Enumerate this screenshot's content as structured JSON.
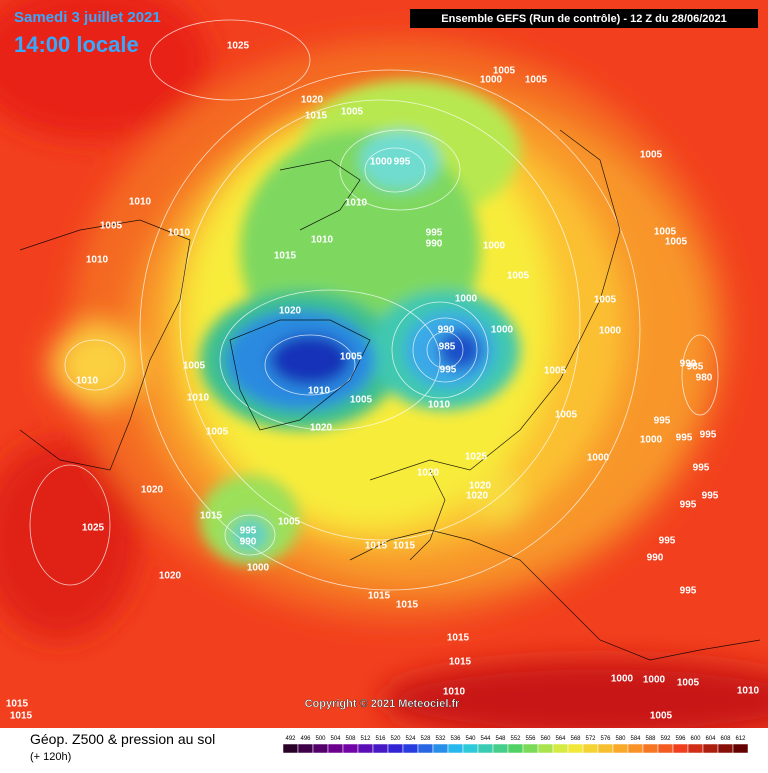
{
  "header": {
    "date": "Samedi 3 juillet 2021",
    "time": "14:00 locale",
    "run": "Ensemble GEFS  (Run de contrôle)  -  12 Z du 28/06/2021"
  },
  "copyright": "Copyright © 2021 Meteociel.fr",
  "footer": {
    "title": "Géop. Z500 & pression au sol",
    "lead": "(+ 120h)"
  },
  "colorbar_labels": [
    "492",
    "496",
    "500",
    "504",
    "508",
    "512",
    "516",
    "520",
    "524",
    "528",
    "532",
    "536",
    "540",
    "544",
    "548",
    "552",
    "556",
    "560",
    "564",
    "568",
    "572",
    "576",
    "580",
    "584",
    "588",
    "592",
    "596",
    "600",
    "604",
    "608",
    "612"
  ],
  "pressure_labels": [
    "1025",
    "1005",
    "1000",
    "1005",
    "1020",
    "1015",
    "1005",
    "1005",
    "1000",
    "995",
    "1010",
    "1010",
    "1005",
    "1010",
    "995",
    "990",
    "1010",
    "1000",
    "1005",
    "1005",
    "1015",
    "1010",
    "1005",
    "1000",
    "1005",
    "1020",
    "990",
    "1000",
    "1000",
    "985",
    "1005",
    "995",
    "985",
    "980",
    "990",
    "1010",
    "1005",
    "1005",
    "1010",
    "1005",
    "1010",
    "1010",
    "1005",
    "995",
    "1020",
    "1005",
    "1000",
    "995",
    "995",
    "1025",
    "1000",
    "1020",
    "1020",
    "1020",
    "995",
    "1020",
    "995",
    "995",
    "1015",
    "1005",
    "995",
    "990",
    "1015",
    "1015",
    "995",
    "1025",
    "990",
    "1000",
    "1020",
    "1015",
    "1015",
    "995",
    "1015",
    "1015",
    "1000",
    "1000",
    "1005",
    "1010",
    "1005",
    "1010",
    "1015",
    "1015"
  ]
}
